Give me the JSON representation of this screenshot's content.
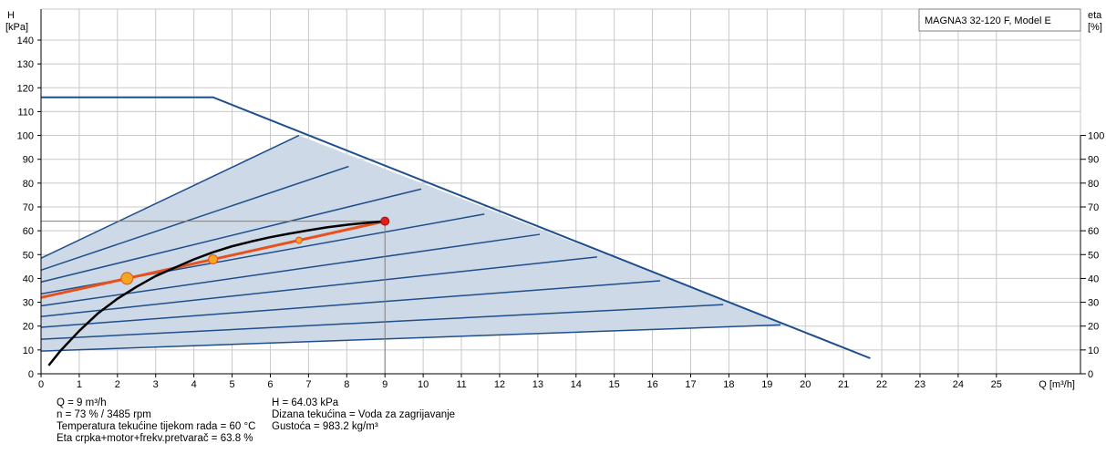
{
  "chart_data": {
    "type": "line",
    "title": "MAGNA3 32-120 F, Model E",
    "ylabel_left": [
      "H",
      "[kPa]"
    ],
    "ylabel_right": [
      "eta",
      "[%]"
    ],
    "xlabel": "Q [m³/h]",
    "xlim": [
      0,
      27.2
    ],
    "ylim": [
      0,
      153
    ],
    "y_right_lim": [
      0,
      153
    ],
    "x_ticks": [
      0,
      1,
      2,
      3,
      4,
      5,
      6,
      7,
      8,
      9,
      10,
      11,
      12,
      13,
      14,
      15,
      16,
      17,
      18,
      19,
      20,
      21,
      22,
      23,
      24,
      25
    ],
    "y_ticks": [
      0,
      10,
      20,
      30,
      40,
      50,
      60,
      70,
      80,
      90,
      100,
      110,
      120,
      130,
      140
    ],
    "y_right_ticks": [
      0,
      10,
      20,
      30,
      40,
      50,
      60,
      70,
      80,
      90,
      100
    ],
    "grid": true,
    "max_curve": {
      "name": "max",
      "x": [
        0,
        4.5,
        21.7
      ],
      "y": [
        116,
        116,
        6.5
      ]
    },
    "speed_curves": [
      {
        "x": [
          0,
          6.75
        ],
        "y": [
          48.5,
          100
        ]
      },
      {
        "x": [
          0,
          8.05
        ],
        "y": [
          43.5,
          87
        ]
      },
      {
        "x": [
          0,
          9.95
        ],
        "y": [
          38.5,
          77.5
        ]
      },
      {
        "x": [
          0,
          11.6
        ],
        "y": [
          33.5,
          67
        ]
      },
      {
        "x": [
          0,
          13.05
        ],
        "y": [
          28.5,
          58.5
        ]
      },
      {
        "x": [
          0,
          14.55
        ],
        "y": [
          24,
          49
        ]
      },
      {
        "x": [
          0,
          16.2
        ],
        "y": [
          19.5,
          39
        ]
      },
      {
        "x": [
          0,
          17.85
        ],
        "y": [
          14.5,
          29
        ]
      },
      {
        "x": [
          0,
          19.35
        ],
        "y": [
          9.5,
          20.5
        ]
      }
    ],
    "system_curve": {
      "x": [
        0.2,
        0.5,
        1,
        1.5,
        2,
        2.5,
        3,
        3.5,
        4,
        4.5,
        5,
        5.5,
        6,
        6.5,
        7,
        7.5,
        8,
        8.5,
        9
      ],
      "y": [
        3.5,
        9.5,
        18,
        25.5,
        31.5,
        36.5,
        41,
        44.5,
        48,
        51,
        53.5,
        55.5,
        57.3,
        58.8,
        60.2,
        61.5,
        62.5,
        63.3,
        64
      ]
    },
    "operating_curve": {
      "x": [
        0,
        9
      ],
      "y": [
        32,
        64
      ]
    },
    "operating_markers": [
      {
        "x": 2.25,
        "y": 40,
        "size": "large"
      },
      {
        "x": 4.5,
        "y": 48,
        "size": "medium"
      },
      {
        "x": 6.75,
        "y": 56,
        "size": "small"
      }
    ],
    "duty_point": {
      "x": 9,
      "y": 64.03
    }
  },
  "info": {
    "col1": [
      "Q = 9 m³/h",
      "n = 73 % / 3485 rpm",
      "Temperatura tekućine tijekom rada = 60 °C",
      "Eta crpka+motor+frekv.pretvarač = 63.8 %"
    ],
    "col2": [
      "H = 64.03 kPa",
      "Dizana tekućina = Voda za zagrijavanje",
      "Gustoća = 983.2 kg/m³"
    ]
  },
  "colors": {
    "grid": "#c8c8c8",
    "curve_blue": "#1f4e8c",
    "fill": "#cdd9e6",
    "system_curve": "#000000",
    "operating_line": "#e8501c",
    "marker": "#f5a623",
    "duty_point": "#e02020"
  }
}
